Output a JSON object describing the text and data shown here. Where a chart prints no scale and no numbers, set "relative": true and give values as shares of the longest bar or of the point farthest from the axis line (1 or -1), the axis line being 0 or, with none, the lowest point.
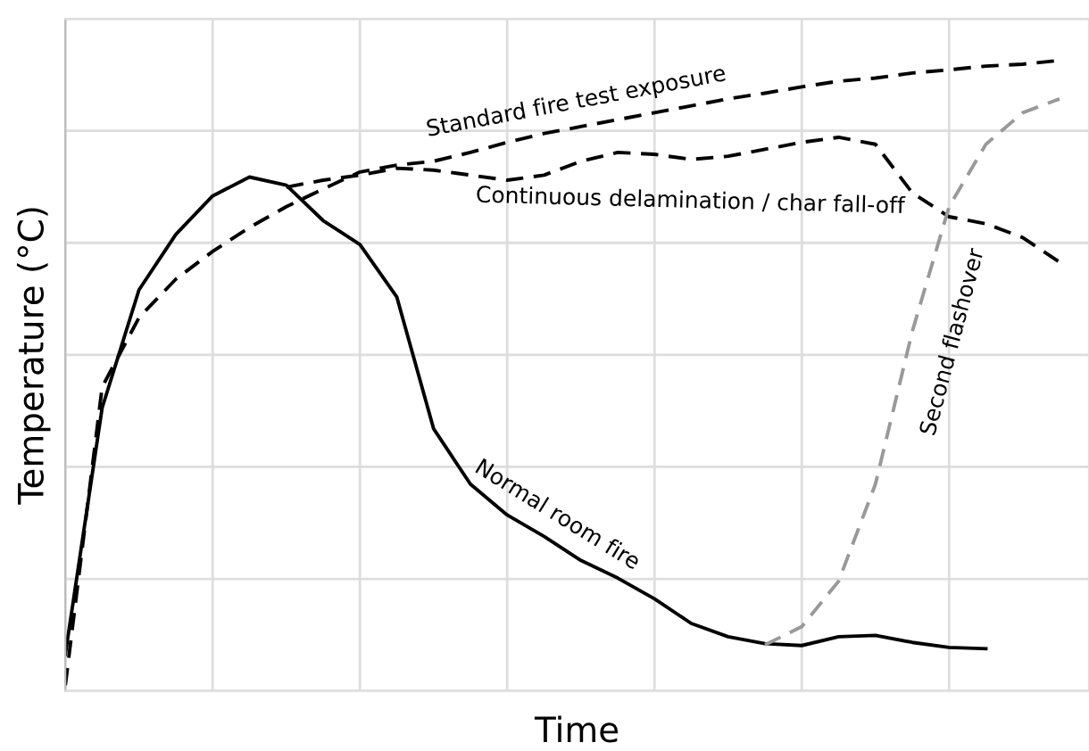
{
  "chart_data": {
    "type": "line",
    "relative": true,
    "xlabel": "Time",
    "ylabel": "Temperature (°C)",
    "grid": true,
    "legend": false,
    "tick_labels": false,
    "categories": [
      null,
      null,
      null,
      null,
      null,
      null,
      null,
      null,
      null,
      null,
      null,
      null,
      null,
      null,
      null,
      null,
      null,
      null,
      null,
      null,
      null,
      null,
      null,
      null,
      null,
      null,
      null,
      null
    ],
    "series": [
      {
        "name": "Standard fire test exposure",
        "color": "#000000",
        "line_style": "dashed",
        "values": [
          0.009,
          0.482,
          0.592,
          0.653,
          0.697,
          0.735,
          0.768,
          0.796,
          0.823,
          0.834,
          0.84,
          0.854,
          0.87,
          0.884,
          0.895,
          0.906,
          0.917,
          0.928,
          0.939,
          0.948,
          0.958,
          0.967,
          0.972,
          0.98,
          0.985,
          0.991,
          0.994,
          1.0
        ]
      },
      {
        "name": "Continuous delamination / char fall-off",
        "color": "#000000",
        "line_style": "dashed",
        "values": [
          null,
          null,
          null,
          null,
          null,
          null,
          0.799,
          0.81,
          0.818,
          0.829,
          0.826,
          0.818,
          0.81,
          0.818,
          0.84,
          0.854,
          0.851,
          0.843,
          0.848,
          0.859,
          0.87,
          0.878,
          0.867,
          0.79,
          0.752,
          0.741,
          0.719,
          0.68
        ]
      },
      {
        "name": "Normal room fire",
        "color": "#000000",
        "line_style": "solid",
        "values": [
          0.058,
          0.449,
          0.636,
          0.724,
          0.785,
          0.815,
          0.802,
          0.746,
          0.708,
          0.625,
          0.416,
          0.328,
          0.279,
          0.245,
          0.207,
          0.179,
          0.146,
          0.107,
          0.086,
          0.075,
          0.072,
          0.086,
          0.088,
          0.077,
          0.069,
          0.067,
          null,
          null
        ]
      },
      {
        "name": "Second flashover",
        "color": "#999999",
        "line_style": "dashed",
        "values": [
          null,
          null,
          null,
          null,
          null,
          null,
          null,
          null,
          null,
          null,
          null,
          null,
          null,
          null,
          null,
          null,
          null,
          null,
          null,
          0.073,
          0.102,
          0.174,
          0.328,
          0.57,
          0.768,
          0.867,
          0.917,
          0.939
        ]
      }
    ]
  }
}
